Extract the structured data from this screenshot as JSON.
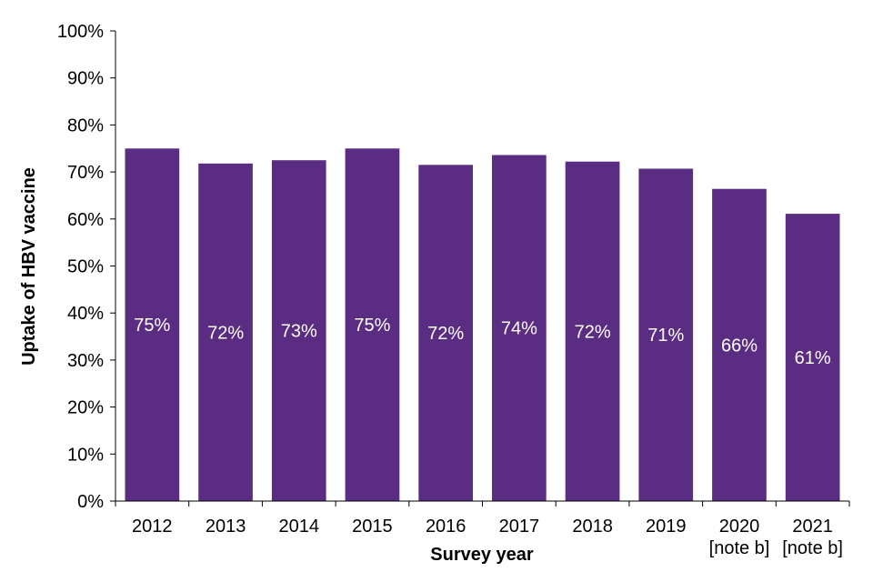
{
  "chart_data": {
    "type": "bar",
    "title": "",
    "xlabel": "Survey year",
    "ylabel": "Uptake of HBV vaccine",
    "categories": [
      "2012",
      "2013",
      "2014",
      "2015",
      "2016",
      "2017",
      "2018",
      "2019",
      "2020",
      "2021"
    ],
    "category_notes": [
      "",
      "",
      "",
      "",
      "",
      "",
      "",
      "",
      "[note b]",
      "[note b]"
    ],
    "values": [
      75,
      71.8,
      72.5,
      75,
      71.5,
      73.6,
      72.2,
      70.7,
      66.4,
      61.1
    ],
    "data_labels": [
      "75%",
      "72%",
      "73%",
      "75%",
      "72%",
      "74%",
      "72%",
      "71%",
      "66%",
      "61%"
    ],
    "ylim": [
      0,
      100
    ],
    "yticks": [
      0,
      10,
      20,
      30,
      40,
      50,
      60,
      70,
      80,
      90,
      100
    ],
    "ytick_labels": [
      "0%",
      "10%",
      "20%",
      "30%",
      "40%",
      "50%",
      "60%",
      "70%",
      "80%",
      "90%",
      "100%"
    ],
    "grid": false,
    "legend": "none",
    "bar_color": "#5a2d82"
  }
}
